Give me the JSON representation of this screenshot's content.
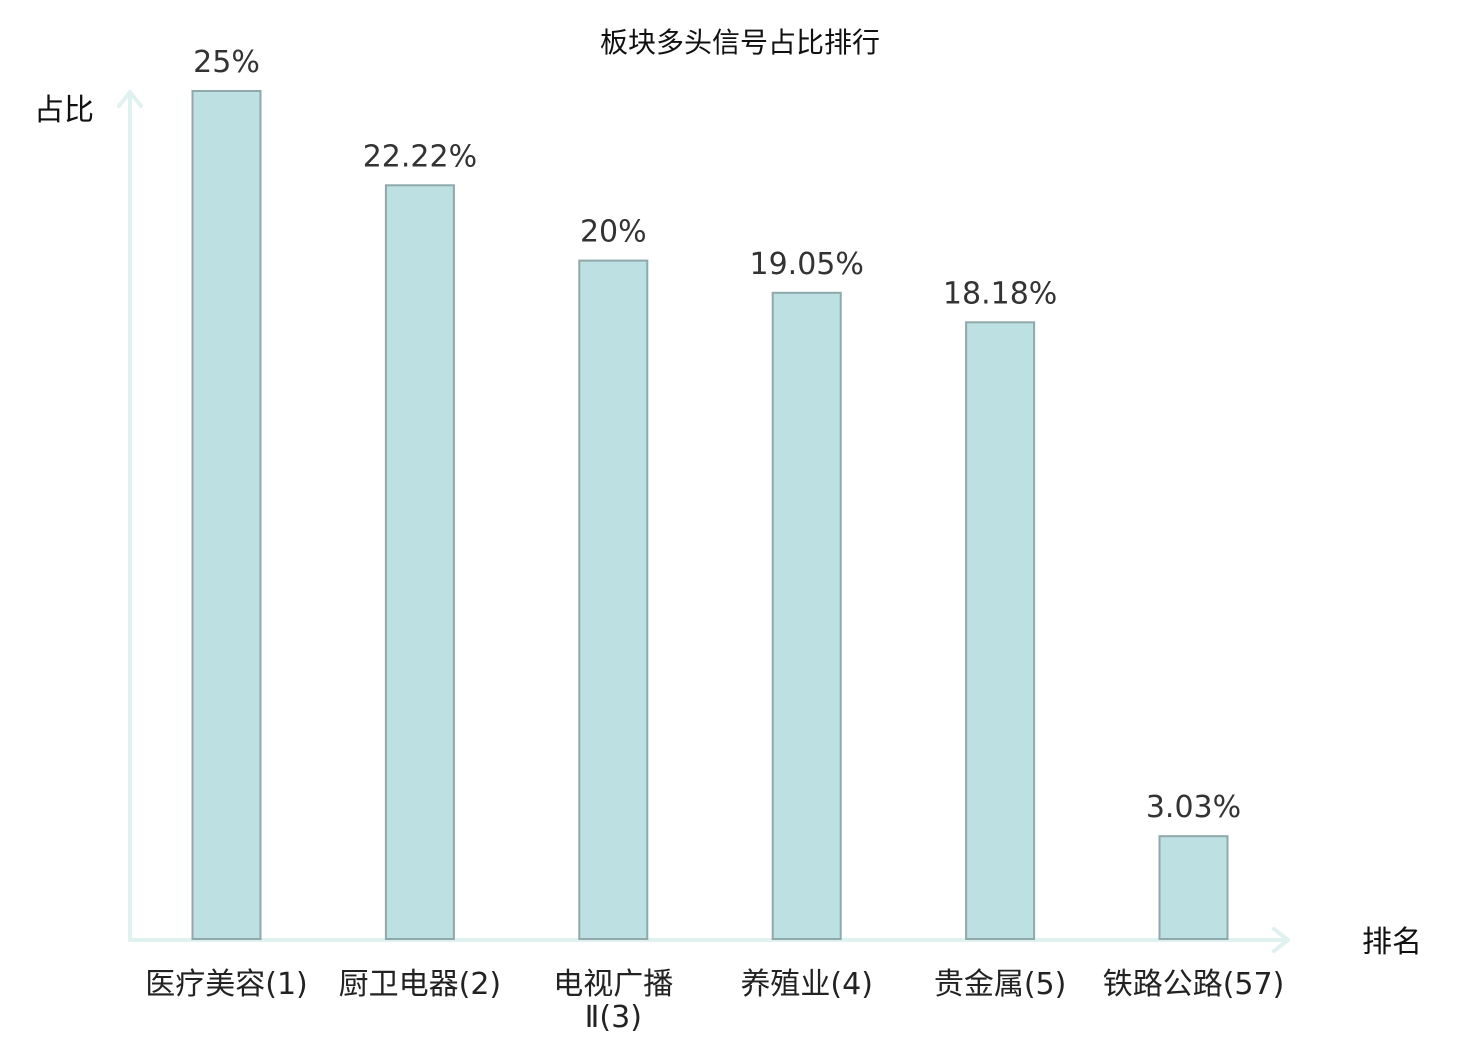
{
  "chart_data": {
    "type": "bar",
    "title": "板块多头信号占比排行",
    "ylabel": "占比",
    "xlabel": "排名",
    "ylim": [
      0,
      25
    ],
    "grid": false,
    "categories": [
      "医疗美容(1)",
      "厨卫电器(2)",
      "电视广播Ⅱ(3)",
      "养殖业(4)",
      "贵金属(5)",
      "铁路公路(57)"
    ],
    "category_lines": [
      [
        "医疗美容(1)"
      ],
      [
        "厨卫电器(2)"
      ],
      [
        "电视广播",
        "Ⅱ(3)"
      ],
      [
        "养殖业(4)"
      ],
      [
        "贵金属(5)"
      ],
      [
        "铁路公路(57)"
      ]
    ],
    "values": [
      25,
      22.22,
      20,
      19.05,
      18.18,
      3.03
    ],
    "value_labels": [
      "25%",
      "22.22%",
      "20%",
      "19.05%",
      "18.18%",
      "3.03%"
    ],
    "highlight_index": 5
  },
  "colors": {
    "bar_fill": "#bde0e2",
    "bar_stroke": "#8fa8ab",
    "axis": "#dff2ef",
    "highlight": "#e8111b",
    "text": "#222222"
  }
}
